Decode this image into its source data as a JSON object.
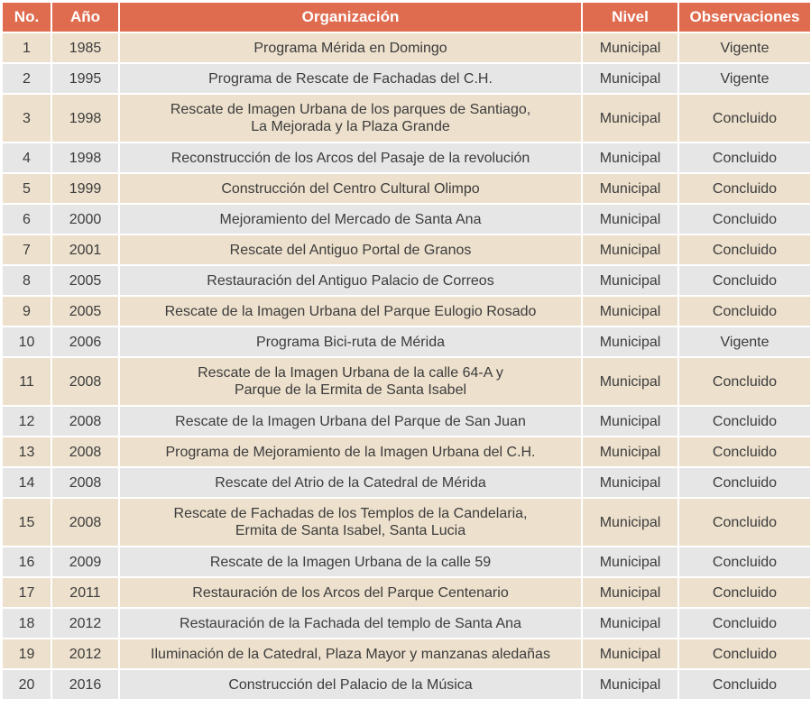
{
  "colors": {
    "header": "#e06c50",
    "row_odd": "#ede0cc",
    "row_even": "#e6e6e6"
  },
  "headers": [
    "No.",
    "Año",
    "Organización",
    "Nivel",
    "Observaciones"
  ],
  "rows": [
    {
      "no": "1",
      "year": "1985",
      "org": [
        "Programa Mérida en Domingo"
      ],
      "level": "Municipal",
      "obs": "Vigente"
    },
    {
      "no": "2",
      "year": "1995",
      "org": [
        "Programa de Rescate de Fachadas del C.H."
      ],
      "level": "Municipal",
      "obs": "Vigente"
    },
    {
      "no": "3",
      "year": "1998",
      "org": [
        "Rescate de Imagen Urbana de los parques de Santiago,",
        "La Mejorada y la Plaza Grande"
      ],
      "level": "Municipal",
      "obs": "Concluido"
    },
    {
      "no": "4",
      "year": "1998",
      "org": [
        "Reconstrucción de los Arcos del Pasaje de la revolución"
      ],
      "level": "Municipal",
      "obs": "Concluido"
    },
    {
      "no": "5",
      "year": "1999",
      "org": [
        "Construcción del Centro Cultural Olimpo"
      ],
      "level": "Municipal",
      "obs": "Concluido"
    },
    {
      "no": "6",
      "year": "2000",
      "org": [
        "Mejoramiento del Mercado de Santa Ana"
      ],
      "level": "Municipal",
      "obs": "Concluido"
    },
    {
      "no": "7",
      "year": "2001",
      "org": [
        "Rescate del Antiguo Portal de Granos"
      ],
      "level": "Municipal",
      "obs": "Concluido"
    },
    {
      "no": "8",
      "year": "2005",
      "org": [
        "Restauración del Antiguo Palacio de Correos"
      ],
      "level": "Municipal",
      "obs": "Concluido"
    },
    {
      "no": "9",
      "year": "2005",
      "org": [
        "Rescate de la Imagen Urbana del Parque Eulogio Rosado"
      ],
      "level": "Municipal",
      "obs": "Concluido"
    },
    {
      "no": "10",
      "year": "2006",
      "org": [
        "Programa Bici-ruta de Mérida"
      ],
      "level": "Municipal",
      "obs": "Vigente"
    },
    {
      "no": "11",
      "year": "2008",
      "org": [
        "Rescate de la Imagen Urbana de la calle 64-A y",
        "Parque de la Ermita de Santa Isabel"
      ],
      "level": "Municipal",
      "obs": "Concluido"
    },
    {
      "no": "12",
      "year": "2008",
      "org": [
        "Rescate de la Imagen Urbana del Parque de San Juan"
      ],
      "level": "Municipal",
      "obs": "Concluido"
    },
    {
      "no": "13",
      "year": "2008",
      "org": [
        "Programa de Mejoramiento de la Imagen Urbana del C.H."
      ],
      "level": "Municipal",
      "obs": "Concluido"
    },
    {
      "no": "14",
      "year": "2008",
      "org": [
        "Rescate del Atrio de la Catedral de Mérida"
      ],
      "level": "Municipal",
      "obs": "Concluido"
    },
    {
      "no": "15",
      "year": "2008",
      "org": [
        "Rescate de Fachadas de los Templos de la Candelaria,",
        "Ermita de Santa Isabel, Santa Lucia"
      ],
      "level": "Municipal",
      "obs": "Concluido"
    },
    {
      "no": "16",
      "year": "2009",
      "org": [
        "Rescate de la Imagen Urbana de la calle 59"
      ],
      "level": "Municipal",
      "obs": "Concluido"
    },
    {
      "no": "17",
      "year": "2011",
      "org": [
        "Restauración de los Arcos del Parque Centenario"
      ],
      "level": "Municipal",
      "obs": "Concluido"
    },
    {
      "no": "18",
      "year": "2012",
      "org": [
        "Restauración de la Fachada del templo de Santa Ana"
      ],
      "level": "Municipal",
      "obs": "Concluido"
    },
    {
      "no": "19",
      "year": "2012",
      "org": [
        "Iluminación de la Catedral, Plaza Mayor y manzanas aledañas"
      ],
      "level": "Municipal",
      "obs": "Concluido"
    },
    {
      "no": "20",
      "year": "2016",
      "org": [
        "Construcción del Palacio de la Música"
      ],
      "level": "Municipal",
      "obs": "Concluido"
    }
  ]
}
